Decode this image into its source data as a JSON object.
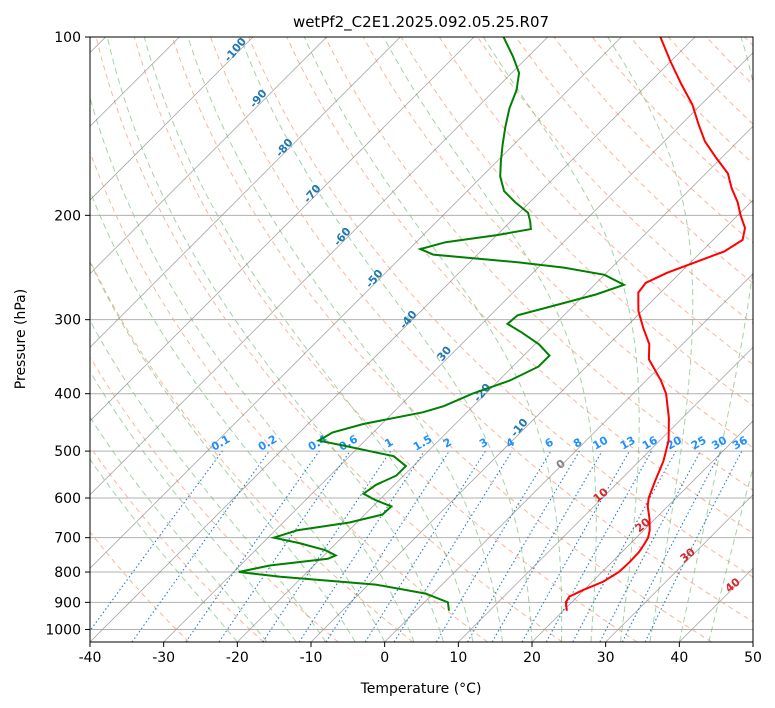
{
  "chart_data": {
    "type": "line",
    "subtype": "skew-t log-p diagram",
    "title": "wetPf2_C2E1.2025.092.05.25.R07",
    "xlabel": "Temperature (°C)",
    "ylabel": "Pressure (hPa)",
    "xlim": [
      -40,
      50
    ],
    "ylim": [
      1050,
      100
    ],
    "y_scale": "log",
    "x_ticks": [
      -40,
      -30,
      -20,
      -10,
      0,
      10,
      20,
      30,
      40,
      50
    ],
    "y_ticks": [
      100,
      200,
      300,
      400,
      500,
      600,
      700,
      800,
      900,
      1000
    ],
    "grid": true,
    "colors": {
      "temperature": "#ff0000",
      "dewpoint": "#008000",
      "dry_adiabats": "#f4a582",
      "moist_adiabats": "#7fbf7f",
      "mixing_ratio": "#1f77b4",
      "isotherms": "#808080",
      "grid": "#b0b0b0"
    },
    "series": [
      {
        "color": "#ff0000",
        "values": [
          [
            930,
            20.5
          ],
          [
            900,
            19.2
          ],
          [
            880,
            18.9
          ],
          [
            860,
            19.8
          ],
          [
            830,
            21.5
          ],
          [
            800,
            22.3
          ],
          [
            770,
            22.4
          ],
          [
            740,
            22.3
          ],
          [
            720,
            22.0
          ],
          [
            700,
            21.6
          ],
          [
            680,
            20.8
          ],
          [
            650,
            19.2
          ],
          [
            620,
            17.3
          ],
          [
            600,
            16.3
          ],
          [
            560,
            14.8
          ],
          [
            520,
            13.3
          ],
          [
            480,
            11.2
          ],
          [
            440,
            8.2
          ],
          [
            400,
            4.5
          ],
          [
            380,
            2.0
          ],
          [
            350,
            -2.5
          ],
          [
            330,
            -4.5
          ],
          [
            310,
            -7.5
          ],
          [
            290,
            -10.5
          ],
          [
            270,
            -13.0
          ],
          [
            260,
            -13.3
          ],
          [
            250,
            -11.8
          ],
          [
            240,
            -9.4
          ],
          [
            230,
            -6.9
          ],
          [
            220,
            -6.0
          ],
          [
            210,
            -7.3
          ],
          [
            200,
            -9.6
          ],
          [
            190,
            -11.8
          ],
          [
            180,
            -14.5
          ],
          [
            170,
            -17.0
          ],
          [
            160,
            -20.7
          ],
          [
            150,
            -24.5
          ],
          [
            140,
            -27.8
          ],
          [
            130,
            -31.2
          ],
          [
            120,
            -35.5
          ],
          [
            110,
            -40.0
          ],
          [
            100,
            -44.7
          ]
        ]
      },
      {
        "color": "#008000",
        "values": [
          [
            930,
            4.5
          ],
          [
            900,
            3.2
          ],
          [
            870,
            -1.0
          ],
          [
            840,
            -9.0
          ],
          [
            815,
            -23.0
          ],
          [
            800,
            -29.3
          ],
          [
            780,
            -26.0
          ],
          [
            760,
            -19.0
          ],
          [
            750,
            -18.4
          ],
          [
            735,
            -20.5
          ],
          [
            715,
            -25.0
          ],
          [
            700,
            -29.2
          ],
          [
            680,
            -27.0
          ],
          [
            660,
            -21.0
          ],
          [
            640,
            -17.6
          ],
          [
            620,
            -17.5
          ],
          [
            605,
            -20.5
          ],
          [
            590,
            -23.0
          ],
          [
            570,
            -22.5
          ],
          [
            550,
            -21.0
          ],
          [
            530,
            -21.0
          ],
          [
            510,
            -24.0
          ],
          [
            490,
            -32.0
          ],
          [
            480,
            -36.3
          ],
          [
            465,
            -35.5
          ],
          [
            450,
            -32.5
          ],
          [
            430,
            -26.0
          ],
          [
            420,
            -24.0
          ],
          [
            400,
            -21.8
          ],
          [
            380,
            -18.5
          ],
          [
            360,
            -16.5
          ],
          [
            345,
            -16.5
          ],
          [
            330,
            -19.5
          ],
          [
            315,
            -23.5
          ],
          [
            305,
            -26.5
          ],
          [
            295,
            -26.3
          ],
          [
            285,
            -23.0
          ],
          [
            272,
            -18.5
          ],
          [
            262,
            -16.0
          ],
          [
            252,
            -20.0
          ],
          [
            245,
            -26.5
          ],
          [
            240,
            -33.5
          ],
          [
            233,
            -46.0
          ],
          [
            228,
            -48.5
          ],
          [
            222,
            -46.0
          ],
          [
            216,
            -40.0
          ],
          [
            211,
            -36.2
          ],
          [
            205,
            -37.3
          ],
          [
            198,
            -38.8
          ],
          [
            190,
            -42.0
          ],
          [
            182,
            -45.0
          ],
          [
            172,
            -47.5
          ],
          [
            162,
            -49.5
          ],
          [
            152,
            -51.5
          ],
          [
            142,
            -53.5
          ],
          [
            132,
            -55.5
          ],
          [
            123,
            -57.0
          ],
          [
            115,
            -59.0
          ],
          [
            108,
            -62.0
          ],
          [
            100,
            -66.0
          ]
        ]
      }
    ],
    "dry_adiabat_labels": [
      "10",
      "20",
      "30",
      "40"
    ],
    "moist_adiabat_labels": [
      "-100",
      "-90",
      "-80",
      "-70",
      "-60",
      "-50",
      "-40",
      "30",
      "-20",
      "-10"
    ],
    "mixing_ratio_labels": [
      "0.1",
      "0.2",
      "0.4",
      "0.6",
      "1",
      "1.5",
      "2",
      "3",
      "4",
      "6",
      "8",
      "10",
      "13",
      "16",
      "20",
      "25",
      "30",
      "36"
    ],
    "isotherm_label": "0"
  }
}
